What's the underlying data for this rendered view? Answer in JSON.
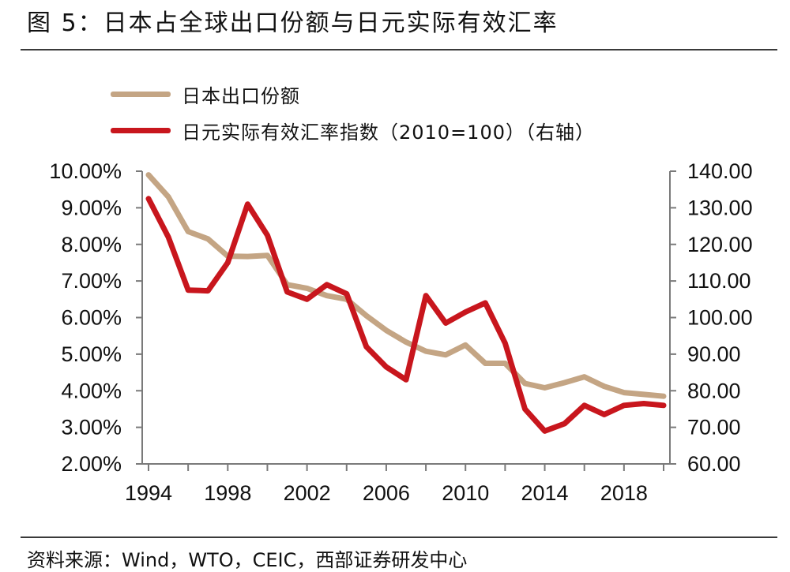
{
  "title": "图 5：日本占全球出口份额与日元实际有效汇率",
  "source": "资料来源：Wind，WTO，CEIC，西部证券研发中心",
  "chart_data": {
    "type": "line",
    "x": [
      1994,
      1995,
      1996,
      1997,
      1998,
      1999,
      2000,
      2001,
      2002,
      2003,
      2004,
      2005,
      2006,
      2007,
      2008,
      2009,
      2010,
      2011,
      2012,
      2013,
      2014,
      2015,
      2016,
      2017,
      2018,
      2019,
      2020
    ],
    "x_ticks": [
      "1994",
      "1998",
      "2002",
      "2006",
      "2010",
      "2014",
      "2018"
    ],
    "y_left": {
      "lim": [
        2.0,
        10.0
      ],
      "ticks": [
        "2.00%",
        "3.00%",
        "4.00%",
        "5.00%",
        "6.00%",
        "7.00%",
        "8.00%",
        "9.00%",
        "10.00%"
      ]
    },
    "y_right": {
      "lim": [
        60,
        140
      ],
      "ticks": [
        "60.00",
        "70.00",
        "80.00",
        "90.00",
        "100.00",
        "110.00",
        "120.00",
        "130.00",
        "140.00"
      ]
    },
    "grid": false,
    "legend_position": "top-left",
    "series": [
      {
        "name": "日本出口份额",
        "axis": "left",
        "color": "#c4a584",
        "values": [
          9.9,
          9.3,
          8.35,
          8.15,
          7.68,
          7.67,
          7.7,
          6.9,
          6.8,
          6.6,
          6.5,
          6.05,
          5.65,
          5.33,
          5.08,
          4.98,
          5.25,
          4.75,
          4.75,
          4.2,
          4.08,
          4.22,
          4.38,
          4.12,
          3.95,
          3.9,
          3.85
        ]
      },
      {
        "name": "日元实际有效汇率指数（2010=100）（右轴）",
        "axis": "right",
        "color": "#c8161d",
        "values": [
          132.5,
          122,
          107.5,
          107.3,
          115,
          131,
          122.5,
          107,
          105,
          109,
          106.5,
          92,
          86.5,
          83,
          106,
          98.5,
          101.5,
          104,
          93,
          75,
          69,
          71,
          76,
          73.5,
          76,
          76.5,
          76
        ]
      }
    ]
  }
}
